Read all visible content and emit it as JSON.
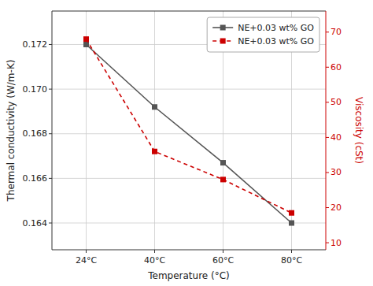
{
  "chart_data": {
    "type": "line",
    "xlabel": "Temperature (°C)",
    "ylabel": "Thermal conductivity (W/m-K)",
    "y2label": "Viscosity (cSt)",
    "categories": [
      "24°C",
      "40°C",
      "60°C",
      "80°C"
    ],
    "series": [
      {
        "name": "NE+0.03 wt% GO",
        "color": "#555555",
        "values": [
          0.172,
          0.1692,
          0.1667,
          0.164
        ],
        "marker": "square",
        "line_style": "solid"
      },
      {
        "name": "NE+0.03 wt% GO",
        "color": "#cc0000",
        "values": [
          68,
          36,
          28,
          18.5
        ],
        "axis": "y2",
        "marker": "square",
        "line_style": "dashed"
      }
    ],
    "ylim": [
      0.1628,
      0.1735
    ],
    "yticks": [
      0.164,
      0.166,
      0.168,
      {
        "value": 0.17,
        "label": "0.170"
      },
      0.172
    ],
    "y2lim": [
      8,
      76
    ],
    "y2ticks": [
      10,
      20,
      30,
      40,
      50,
      60,
      70
    ],
    "grid": true,
    "legend": "upper right"
  }
}
